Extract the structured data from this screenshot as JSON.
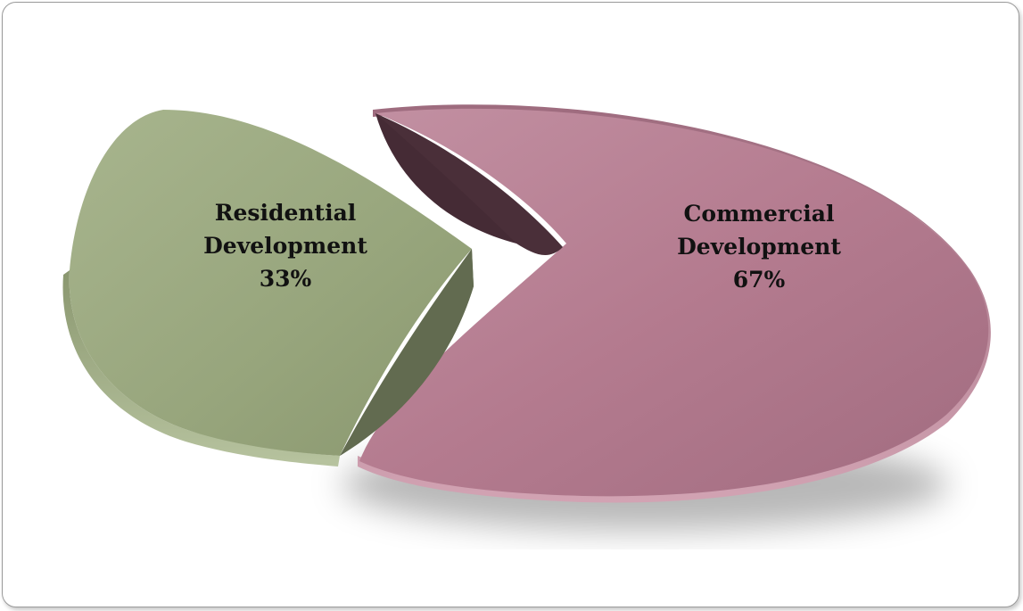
{
  "chart_data": {
    "type": "pie",
    "title": "",
    "slices": [
      {
        "label_lines": [
          "Residential",
          "Development"
        ],
        "percent_label": "33%",
        "value": 33,
        "color": "#97a57c",
        "side_color": "#6a7356"
      },
      {
        "label_lines": [
          "Commercial",
          "Development"
        ],
        "percent_label": "67%",
        "value": 67,
        "color": "#b57c90",
        "side_color": "#4a2f39"
      }
    ],
    "legend": "none",
    "style": "3d-exploded"
  }
}
